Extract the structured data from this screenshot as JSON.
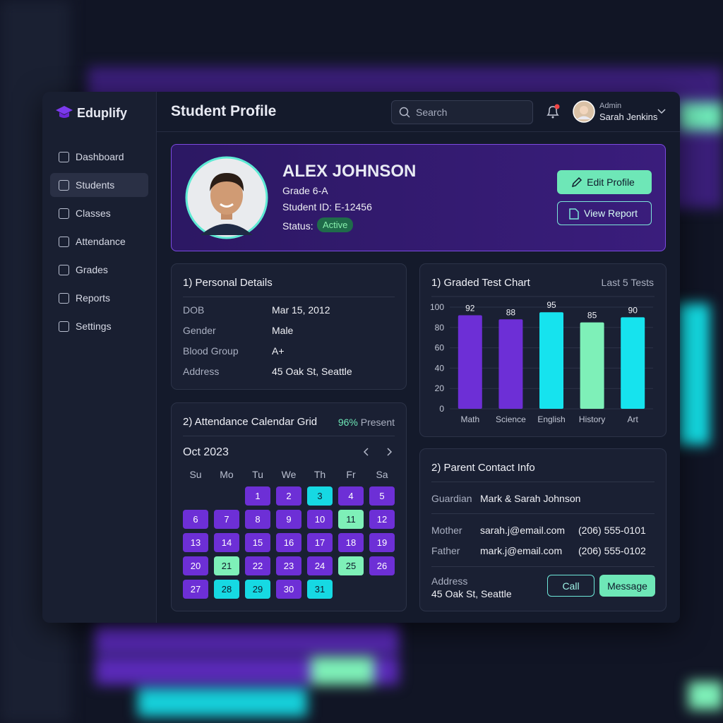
{
  "sidebar": {
    "brand": "Eduplify",
    "nav": [
      "Dashboard",
      "Students",
      "Classes",
      "Attendance",
      "Grades",
      "Reports",
      "Settings"
    ],
    "active": 1
  },
  "header": {
    "title": "Student Profile",
    "search_placeholder": "Search",
    "user_role": "Admin",
    "user_name": "Sarah Jenkins"
  },
  "profile": {
    "name": "ALEX JOHNSON",
    "grade": "Grade 6-A",
    "student_id": "Student ID: E-12456",
    "status_label": "Status:",
    "status": "Active",
    "edit_button": "Edit Profile",
    "report_button": "View Report"
  },
  "personal_details": {
    "title": "1) Personal Details",
    "rows": [
      [
        "DOB",
        "Mar 15, 2012"
      ],
      [
        "Gender",
        "Male"
      ],
      [
        "Blood Group",
        "A+"
      ],
      [
        "Address",
        "45 Oak St, Seattle"
      ]
    ]
  },
  "attendance": {
    "title": "2) Attendance Calendar Grid",
    "present": "96%",
    "present_label": "Present",
    "month": "Oct 2023",
    "weekdays": [
      "Su",
      "Mo",
      "Tu",
      "We",
      "Th",
      "Fr",
      "Sa"
    ],
    "days": [
      1,
      2,
      3,
      4,
      5,
      6,
      7,
      8,
      9,
      10,
      11,
      12,
      13,
      14,
      15,
      16,
      17,
      18,
      19,
      20,
      21,
      22,
      23,
      24,
      25,
      26,
      27,
      28,
      29,
      30,
      31
    ],
    "day_colors": [
      "#6d2fd6",
      "#6d2fd6",
      "#16d9e3",
      "#6d2fd6",
      "#6d2fd6",
      "#6d2fd6",
      "#6d2fd6",
      "#6d2fd6",
      "#6d2fd6",
      "#6d2fd6",
      "#7ef0b8",
      "#6d2fd6",
      "#6d2fd6",
      "#6d2fd6",
      "#6d2fd6",
      "#6d2fd6",
      "#6d2fd6",
      "#6d2fd6",
      "#6d2fd6",
      "#6d2fd6",
      "#7ef0b8",
      "#6d2fd6",
      "#6d2fd6",
      "#6d2fd6",
      "#7ef0b8",
      "#6d2fd6",
      "#6d2fd6",
      "#16d9e3",
      "#16d9e3",
      "#6d2fd6",
      "#16d9e3"
    ]
  },
  "chart_data": {
    "type": "bar",
    "title": "1) Graded Test Chart",
    "subtitle": "Last 5 Tests",
    "categories": [
      "Math",
      "Science",
      "English",
      "History",
      "Art"
    ],
    "values": [
      92,
      88,
      95,
      85,
      90
    ],
    "colors": [
      "#6d2fd6",
      "#6d2fd6",
      "#16e3ee",
      "#7ef0b8",
      "#16e3ee"
    ],
    "ylim": [
      0,
      100
    ],
    "yticks": [
      0,
      20,
      40,
      60,
      80,
      100
    ],
    "grid": true
  },
  "parent_contact": {
    "title": "2) Parent Contact Info",
    "guardian_label": "Guardian",
    "guardian": "Mark & Sarah Johnson",
    "contacts": [
      [
        "Mother",
        "sarah.j@email.com",
        "(206) 555-0101"
      ],
      [
        "Father",
        "mark.j@email.com",
        "(206) 555-0102"
      ]
    ],
    "address_label": "Address",
    "address": "45 Oak St, Seattle",
    "call_button": "Call",
    "message_button": "Message"
  }
}
